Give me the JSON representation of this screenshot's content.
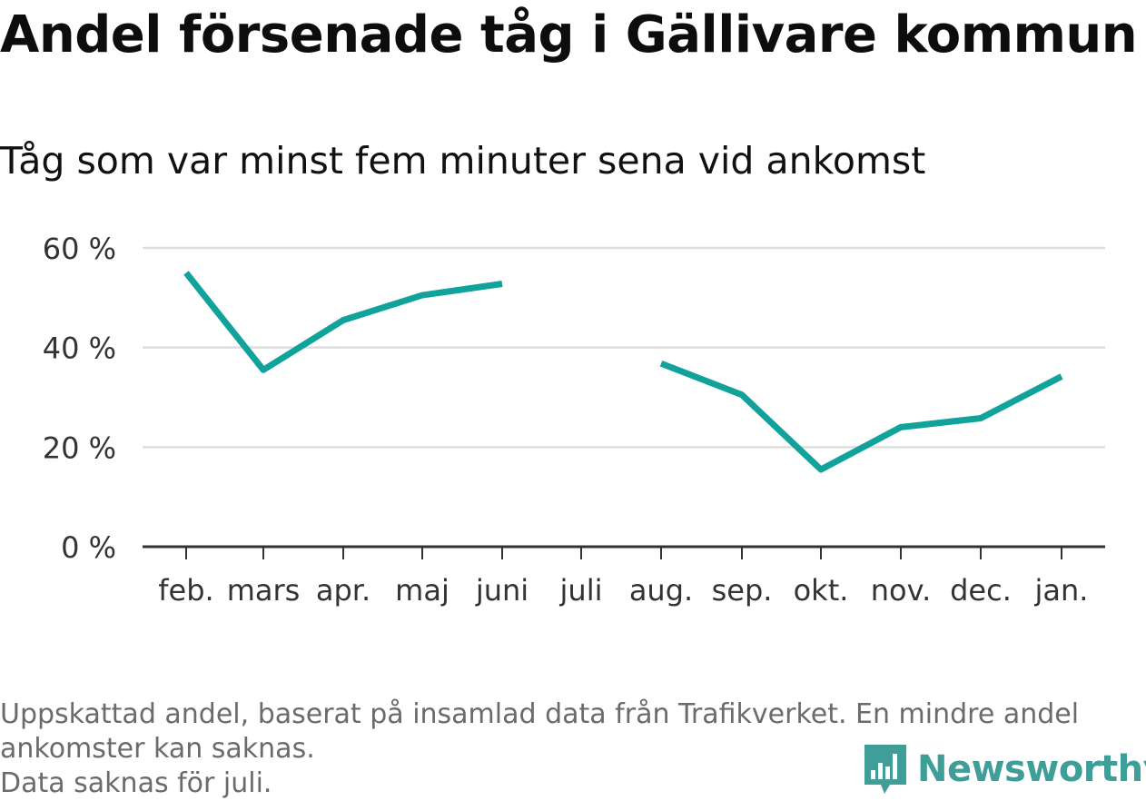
{
  "title": "Andel försenade tåg i Gällivare kommun",
  "subtitle": "Tåg som var minst fem minuter sena vid ankomst",
  "footer": {
    "line1": "Uppskattad andel, baserat på insamlad data från Trafikverket. En mindre andel",
    "line2": "ankomster kan saknas.",
    "line3": "Data saknas för juli."
  },
  "brand": {
    "name": "Newsworthy",
    "icon": "bar-chart-speech-bubble-icon",
    "color": "#3f9e98"
  },
  "chart_data": {
    "type": "line",
    "title": "Andel försenade tåg i Gällivare kommun",
    "subtitle": "Tåg som var minst fem minuter sena vid ankomst",
    "categories": [
      "feb.",
      "mars",
      "apr.",
      "maj",
      "juni",
      "juli",
      "aug.",
      "sep.",
      "okt.",
      "nov.",
      "dec.",
      "jan."
    ],
    "series": [
      {
        "values": [
          55,
          35.5,
          45.5,
          50.5,
          52.8,
          null,
          36.8,
          30.5,
          15.5,
          24,
          25.8,
          34.2
        ],
        "color": "#11a39b"
      }
    ],
    "y_ticks": [
      0,
      20,
      40,
      60
    ],
    "y_tick_labels": [
      "0 %",
      "20 %",
      "40 %",
      "60 %"
    ],
    "ylim": [
      0,
      60
    ],
    "grid": true,
    "legend": "none"
  }
}
